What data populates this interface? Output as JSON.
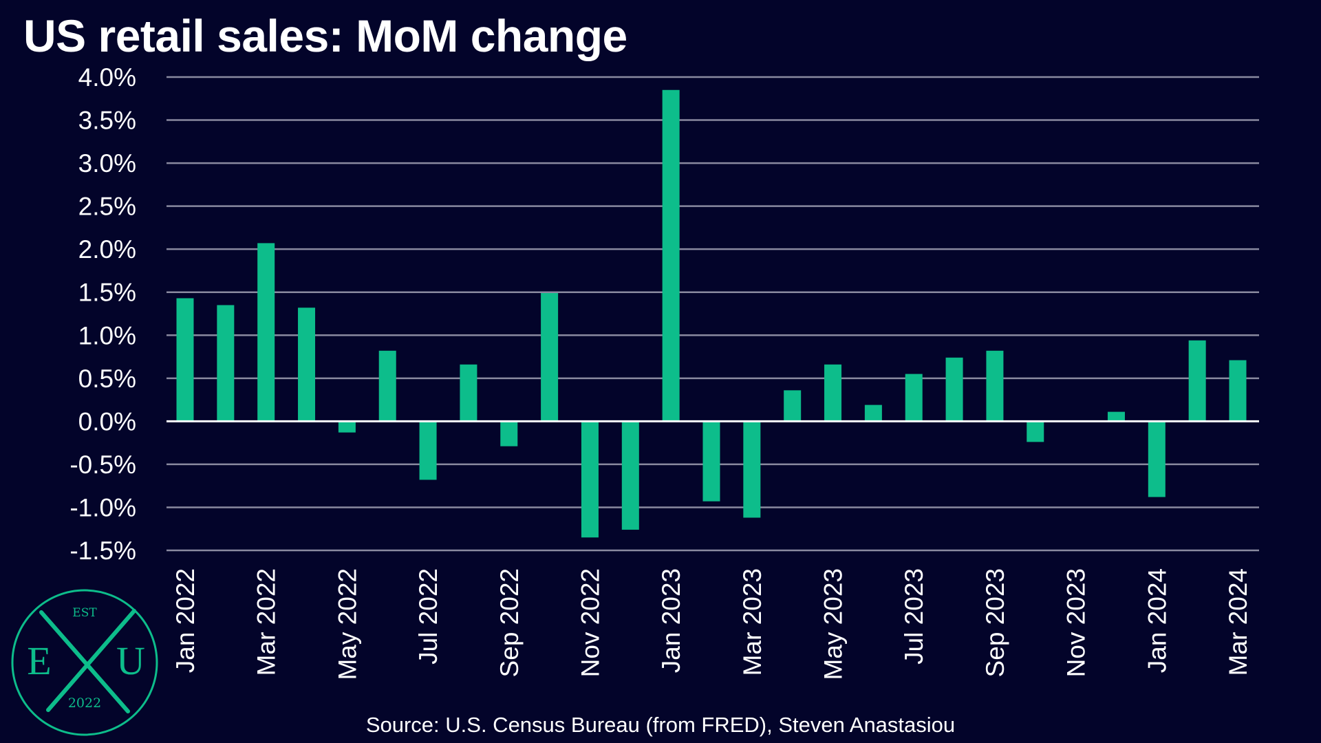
{
  "chart_data": {
    "type": "bar",
    "title": "US retail sales: MoM change",
    "xlabel": "",
    "ylabel": "",
    "ylim": [
      -1.5,
      4.0
    ],
    "y_ticks": [
      -1.5,
      -1.0,
      -0.5,
      0.0,
      0.5,
      1.0,
      1.5,
      2.0,
      2.5,
      3.0,
      3.5,
      4.0
    ],
    "y_tick_labels": [
      "-1.5%",
      "-1.0%",
      "-0.5%",
      "0.0%",
      "0.5%",
      "1.0%",
      "1.5%",
      "2.0%",
      "2.5%",
      "3.0%",
      "3.5%",
      "4.0%"
    ],
    "grid": true,
    "legend": "none",
    "categories": [
      "Jan 2022",
      "Feb 2022",
      "Mar 2022",
      "Apr 2022",
      "May 2022",
      "Jun 2022",
      "Jul 2022",
      "Aug 2022",
      "Sep 2022",
      "Oct 2022",
      "Nov 2022",
      "Dec 2022",
      "Jan 2023",
      "Feb 2023",
      "Mar 2023",
      "Apr 2023",
      "May 2023",
      "Jun 2023",
      "Jul 2023",
      "Aug 2023",
      "Sep 2023",
      "Oct 2023",
      "Nov 2023",
      "Dec 2023",
      "Jan 2024",
      "Feb 2024",
      "Mar 2024"
    ],
    "x_tick_labels": [
      "Jan 2022",
      "Mar 2022",
      "May 2022",
      "Jul 2022",
      "Sep 2022",
      "Nov 2022",
      "Jan 2023",
      "Mar 2023",
      "May 2023",
      "Jul 2023",
      "Sep 2023",
      "Nov 2023",
      "Jan 2024",
      "Mar 2024"
    ],
    "values": [
      1.43,
      1.35,
      2.07,
      1.32,
      -0.13,
      0.82,
      -0.68,
      0.66,
      -0.29,
      1.49,
      -1.35,
      -1.26,
      3.85,
      -0.93,
      -1.12,
      0.36,
      0.66,
      0.19,
      0.55,
      0.74,
      0.82,
      -0.24,
      0.0,
      0.11,
      -0.88,
      0.94,
      0.71
    ],
    "source": "Source: U.S. Census Bureau (from FRED), Steven Anastasiou"
  },
  "colors": {
    "background": "#03042a",
    "bar": "#0dbd8b",
    "grid": "#8a8aa0",
    "zero_line": "#ffffff",
    "text": "#ffffff",
    "logo": "#0dbd8b"
  },
  "logo": {
    "top_text": "EST",
    "left_letter": "E",
    "right_letter": "U",
    "bottom_text": "2022"
  }
}
